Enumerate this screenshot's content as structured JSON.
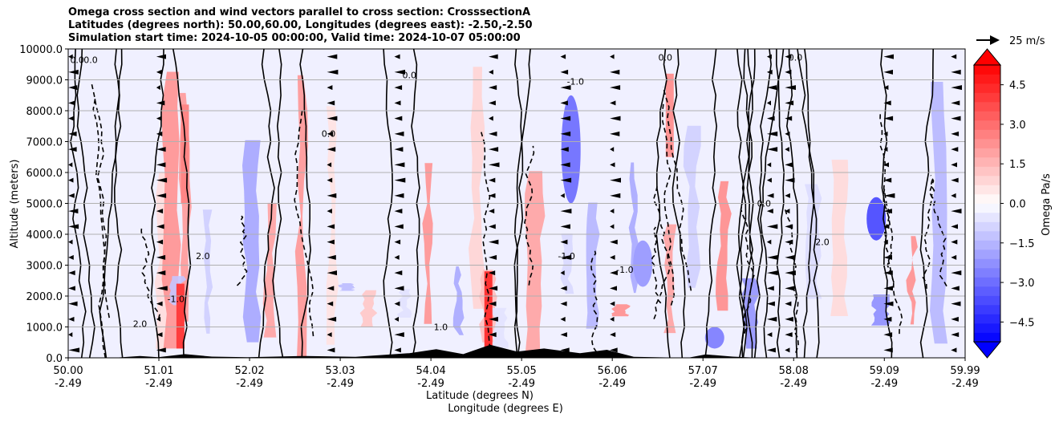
{
  "chart_data": {
    "type": "contour",
    "title_lines": [
      "Omega cross section and wind vectors parallel to cross section: CrosssectionA",
      "Latitudes (degrees north): 50.00,60.00, Longitudes (degrees east): -2.50,-2.50",
      "Simulation start time: 2024-10-05 00:00:00, Valid time: 2024-10-07 05:00:00"
    ],
    "ylabel": "Altitude (meters)",
    "xlabel_lat": "Latitude (degrees N)",
    "xlabel_lon": "Longitude (degrees E)",
    "ylim": [
      0,
      10000
    ],
    "xlim": [
      50.0,
      59.99
    ],
    "y_ticks": [
      {
        "value": 0,
        "label": "0.0"
      },
      {
        "value": 1000,
        "label": "1000.0"
      },
      {
        "value": 2000,
        "label": "2000.0"
      },
      {
        "value": 3000,
        "label": "3000.0"
      },
      {
        "value": 4000,
        "label": "4000.0"
      },
      {
        "value": 5000,
        "label": "5000.0"
      },
      {
        "value": 6000,
        "label": "6000.0"
      },
      {
        "value": 7000,
        "label": "7000.0"
      },
      {
        "value": 8000,
        "label": "8000.0"
      },
      {
        "value": 9000,
        "label": "9000.0"
      },
      {
        "value": 10000,
        "label": "10000.0"
      }
    ],
    "x_ticks": [
      {
        "value": 50.0,
        "lat": "50.00",
        "lon": "-2.49"
      },
      {
        "value": 51.01,
        "lat": "51.01",
        "lon": "-2.49"
      },
      {
        "value": 52.02,
        "lat": "52.02",
        "lon": "-2.49"
      },
      {
        "value": 53.03,
        "lat": "53.03",
        "lon": "-2.49"
      },
      {
        "value": 54.04,
        "lat": "54.04",
        "lon": "-2.49"
      },
      {
        "value": 55.05,
        "lat": "55.05",
        "lon": "-2.49"
      },
      {
        "value": 56.06,
        "lat": "56.06",
        "lon": "-2.49"
      },
      {
        "value": 57.07,
        "lat": "57.07",
        "lon": "-2.49"
      },
      {
        "value": 58.08,
        "lat": "58.08",
        "lon": "-2.49"
      },
      {
        "value": 59.09,
        "lat": "59.09",
        "lon": "-2.49"
      },
      {
        "value": 59.99,
        "lat": "59.99",
        "lon": "-2.49"
      }
    ],
    "colorbar": {
      "label": "Omega Pa/s",
      "range": [
        -5.25,
        5.25
      ],
      "ticks": [
        {
          "value": 4.5,
          "label": "4.5"
        },
        {
          "value": 3.0,
          "label": "3.0"
        },
        {
          "value": 1.5,
          "label": "1.5"
        },
        {
          "value": 0.0,
          "label": "0.0"
        },
        {
          "value": -1.5,
          "label": "−1.5"
        },
        {
          "value": -3.0,
          "label": "−3.0"
        },
        {
          "value": -4.5,
          "label": "−4.5"
        }
      ],
      "extend": "both"
    },
    "vector_key": {
      "label": "25 m/s",
      "speed": 25
    },
    "contour_labels": [
      {
        "text": "0.0",
        "x": 50.1,
        "y": 9550
      },
      {
        "text": "0.0",
        "x": 50.25,
        "y": 9550
      },
      {
        "text": "0.0",
        "x": 53.8,
        "y": 9050
      },
      {
        "text": "0.0",
        "x": 56.65,
        "y": 9620
      },
      {
        "text": "0.0",
        "x": 58.1,
        "y": 9620
      },
      {
        "text": "-1.0",
        "x": 55.65,
        "y": 8850
      },
      {
        "text": "2.0",
        "x": 51.5,
        "y": 3200
      },
      {
        "text": "-1.0",
        "x": 51.2,
        "y": 1800
      },
      {
        "text": "-1.0",
        "x": 56.2,
        "y": 2750
      },
      {
        "text": "2.0",
        "x": 58.4,
        "y": 3650
      },
      {
        "text": "2.0",
        "x": 50.8,
        "y": 1000
      },
      {
        "text": "1.0",
        "x": 54.15,
        "y": 900
      },
      {
        "text": "-1.0",
        "x": 55.55,
        "y": 3200
      },
      {
        "text": "0.0",
        "x": 52.9,
        "y": 7150
      },
      {
        "text": "0.0",
        "x": 57.75,
        "y": 4900
      }
    ]
  }
}
